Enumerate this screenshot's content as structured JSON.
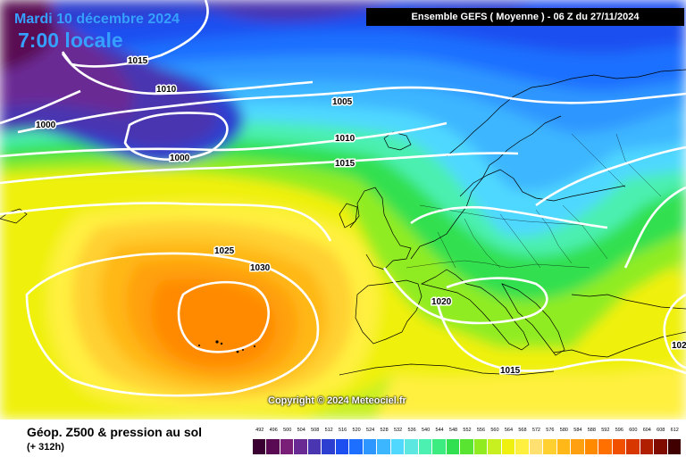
{
  "header": {
    "date": "Mardi 10 décembre 2024",
    "time": "7:00 locale",
    "model": "Ensemble GEFS  ( Moyenne )  -  06 Z du 27/11/2024"
  },
  "copyright": "Copyright © 2024 Meteociel.fr",
  "footer": {
    "param_title": "Géop. Z500 & pression au sol",
    "lead": "(+ 312h)"
  },
  "isobar_labels": [
    "1015",
    "1010",
    "1000",
    "1000",
    "1005",
    "1010",
    "1015",
    "1025",
    "1030",
    "1020",
    "1015",
    "102"
  ],
  "legend": {
    "values": [
      "492",
      "496",
      "500",
      "504",
      "508",
      "512",
      "516",
      "520",
      "524",
      "528",
      "532",
      "536",
      "540",
      "544",
      "548",
      "552",
      "556",
      "560",
      "564",
      "568",
      "572",
      "576",
      "580",
      "584",
      "588",
      "592",
      "596",
      "600",
      "604",
      "608",
      "612"
    ],
    "colors": [
      "#3b0032",
      "#5a0a52",
      "#7a1f78",
      "#6a2a94",
      "#4a36b0",
      "#2d3fd0",
      "#1d4ff0",
      "#1d70ff",
      "#2d96ff",
      "#3cb6ff",
      "#50d8ff",
      "#5ce8e0",
      "#4cf0b0",
      "#3cec80",
      "#30e050",
      "#58e430",
      "#90ec20",
      "#c8f020",
      "#f0f010",
      "#fff040",
      "#ffe070",
      "#ffd030",
      "#ffb818",
      "#ffa010",
      "#ff8a00",
      "#ff7000",
      "#f05000",
      "#d83800",
      "#b02000",
      "#800c00",
      "#400000"
    ]
  }
}
